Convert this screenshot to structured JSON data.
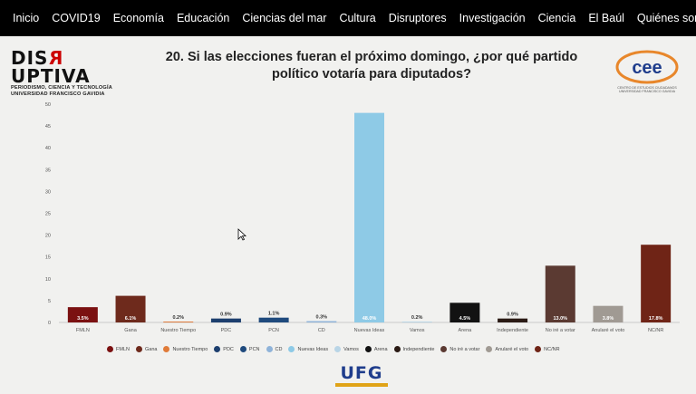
{
  "nav": {
    "items": [
      "Inicio",
      "COVID19",
      "Economía",
      "Educación",
      "Ciencias del mar",
      "Cultura",
      "Disruptores",
      "Investigación",
      "Ciencia",
      "El Baúl",
      "Quiénes somos"
    ]
  },
  "brand": {
    "name_a": "DIS",
    "name_r": "R",
    "name_b": "UPTIVA",
    "sub1": "PERIODISMO, CIENCIA Y TECNOLOGÍA",
    "sub2": "UNIVERSIDAD FRANCISCO GAVIDIA"
  },
  "question": {
    "line1": "20. Si las elecciones fueran el próximo domingo, ¿por qué partido",
    "line2": "político votaría para diputados?"
  },
  "cee": {
    "logo_text": "cee",
    "caption1": "CENTRO DE ESTUDIOS CIUDADANOS",
    "caption2": "UNIVERSIDAD FRANCISCO GAVIDIA"
  },
  "ufg": {
    "text": "UFG"
  },
  "chart_data": {
    "type": "bar",
    "categories": [
      "FMLN",
      "Gana",
      "Nuestro Tiempo",
      "PDC",
      "PCN",
      "CD",
      "Nuevas Ideas",
      "Vamos",
      "Arena",
      "Independiente",
      "No iré a votar",
      "Anularé el voto",
      "NC/NR"
    ],
    "values": [
      3.5,
      6.1,
      0.2,
      0.9,
      1.1,
      0.3,
      48.0,
      0.2,
      4.5,
      0.9,
      13.0,
      3.8,
      17.8
    ],
    "data_labels": [
      "3.5%",
      "6.1%",
      "0.2%",
      "0.9%",
      "1.1%",
      "0.3%",
      "48.0%",
      "0.2%",
      "4.5%",
      "0.9%",
      "13.0%",
      "3.8%",
      "17.8%"
    ],
    "colors": [
      "#7b1111",
      "#6e2a1c",
      "#e07b39",
      "#1d3f6e",
      "#1f4a7d",
      "#8fb3d9",
      "#8ecae6",
      "#b9d5e6",
      "#121212",
      "#2a1a14",
      "#5b3a32",
      "#a09a93",
      "#6f2416"
    ],
    "y_ticks": [
      0,
      5,
      10,
      15,
      20,
      25,
      30,
      35,
      40,
      45,
      50
    ],
    "ylim": [
      0,
      50
    ],
    "grid": false,
    "legend_position": "bottom"
  }
}
